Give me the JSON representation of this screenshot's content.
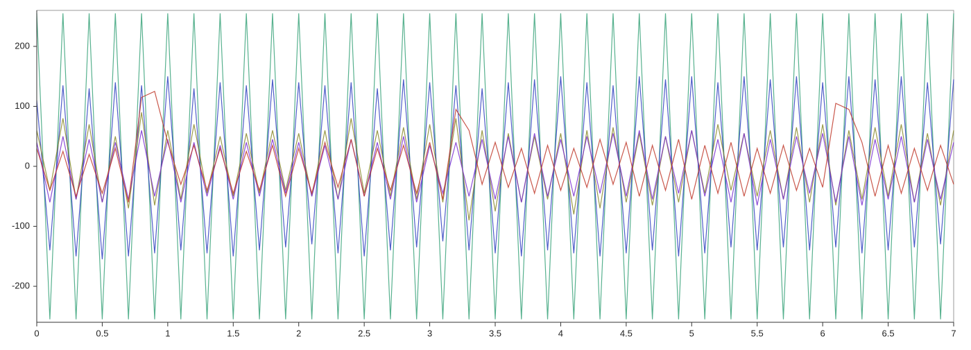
{
  "chart_data": {
    "type": "line",
    "x": [
      0,
      0.1,
      0.2,
      0.3,
      0.4,
      0.5,
      0.6,
      0.7,
      0.8,
      0.9,
      1,
      1.1,
      1.2,
      1.3,
      1.4,
      1.5,
      1.6,
      1.7,
      1.8,
      1.9,
      2,
      2.1,
      2.2,
      2.3,
      2.4,
      2.5,
      2.6,
      2.7,
      2.8,
      2.9,
      3,
      3.1,
      3.2,
      3.3,
      3.4,
      3.5,
      3.6,
      3.7,
      3.8,
      3.9,
      4,
      4.1,
      4.2,
      4.3,
      4.4,
      4.5,
      4.6,
      4.7,
      4.8,
      4.9,
      5,
      5.1,
      5.2,
      5.3,
      5.4,
      5.5,
      5.6,
      5.7,
      5.8,
      5.9,
      6,
      6.1,
      6.2,
      6.3,
      6.4,
      6.5,
      6.6,
      6.7,
      6.8,
      6.9,
      7
    ],
    "series": [
      {
        "color": "#3aa37a",
        "values": [
          255,
          -255,
          255,
          -255,
          255,
          -255,
          255,
          -255,
          255,
          -255,
          255,
          -255,
          255,
          -255,
          255,
          -255,
          255,
          -255,
          255,
          -255,
          255,
          -255,
          255,
          -255,
          255,
          -255,
          255,
          -255,
          255,
          -255,
          255,
          -255,
          255,
          -255,
          255,
          -255,
          255,
          -255,
          255,
          -255,
          255,
          -255,
          255,
          -255,
          255,
          -255,
          255,
          -255,
          255,
          -255,
          255,
          -255,
          255,
          -255,
          255,
          -255,
          255,
          -255,
          255,
          -255,
          255,
          -255,
          255,
          -255,
          255,
          -255,
          255,
          -255,
          255,
          -255,
          255
        ]
      },
      {
        "color": "#2f3fc0",
        "values": [
          110,
          -140,
          135,
          -150,
          130,
          -155,
          140,
          -150,
          135,
          -145,
          150,
          -140,
          130,
          -145,
          140,
          -150,
          135,
          -140,
          145,
          -135,
          140,
          -130,
          135,
          -145,
          140,
          -150,
          130,
          -140,
          145,
          -135,
          140,
          -125,
          135,
          -140,
          130,
          -145,
          140,
          -150,
          145,
          -140,
          150,
          -145,
          140,
          -150,
          135,
          -145,
          150,
          -140,
          145,
          -150,
          150,
          -145,
          140,
          -135,
          150,
          -140,
          145,
          -135,
          150,
          -140,
          140,
          -135,
          150,
          -145,
          145,
          -140,
          150,
          -135,
          140,
          -130,
          145
        ]
      },
      {
        "color": "#8a8a2a",
        "values": [
          60,
          -40,
          80,
          -55,
          70,
          -60,
          50,
          -70,
          90,
          -65,
          60,
          -55,
          70,
          -45,
          50,
          -50,
          55,
          -45,
          60,
          -40,
          55,
          -50,
          60,
          -55,
          80,
          -45,
          60,
          -50,
          65,
          -55,
          70,
          -60,
          80,
          -90,
          60,
          -75,
          55,
          -60,
          50,
          -55,
          55,
          -80,
          60,
          -70,
          65,
          -60,
          55,
          -65,
          50,
          -60,
          60,
          -45,
          70,
          -40,
          55,
          -50,
          60,
          -55,
          65,
          -60,
          70,
          -65,
          60,
          -55,
          65,
          -50,
          70,
          -60,
          55,
          -65,
          60
        ]
      },
      {
        "color": "#7a2fd0",
        "values": [
          40,
          -60,
          50,
          -55,
          45,
          -60,
          40,
          -55,
          60,
          -50,
          45,
          -60,
          40,
          -50,
          35,
          -55,
          40,
          -50,
          45,
          -45,
          40,
          -50,
          35,
          -55,
          45,
          -50,
          40,
          -55,
          50,
          -60,
          35,
          -45,
          40,
          -50,
          45,
          -55,
          50,
          -60,
          55,
          -50,
          45,
          -50,
          50,
          -45,
          55,
          -50,
          60,
          -55,
          50,
          -45,
          60,
          -50,
          45,
          -60,
          55,
          -65,
          45,
          -55,
          50,
          -45,
          55,
          -60,
          50,
          -65,
          45,
          -55,
          50,
          -60,
          45,
          -55,
          40
        ]
      },
      {
        "color": "#c0392b",
        "values": [
          30,
          -40,
          25,
          -50,
          20,
          -45,
          30,
          -60,
          115,
          125,
          40,
          -30,
          35,
          -40,
          30,
          -45,
          25,
          -40,
          35,
          -50,
          30,
          -45,
          40,
          -35,
          45,
          -50,
          30,
          -40,
          35,
          -45,
          40,
          -55,
          95,
          60,
          -30,
          40,
          -35,
          30,
          -45,
          35,
          -40,
          30,
          -35,
          45,
          -30,
          40,
          -50,
          35,
          -40,
          45,
          -55,
          35,
          -45,
          40,
          -50,
          30,
          -45,
          35,
          -40,
          30,
          -35,
          105,
          95,
          40,
          -50,
          35,
          -45,
          30,
          -40,
          35,
          -30
        ]
      }
    ],
    "xlim": [
      0,
      7
    ],
    "xticks": [
      0,
      0.5,
      1,
      1.5,
      2,
      2.5,
      3,
      3.5,
      4,
      4.5,
      5,
      5.5,
      6,
      6.5,
      7
    ],
    "ylim": [
      -260,
      260
    ],
    "yticks": [
      -200,
      -100,
      0,
      100,
      200
    ]
  }
}
